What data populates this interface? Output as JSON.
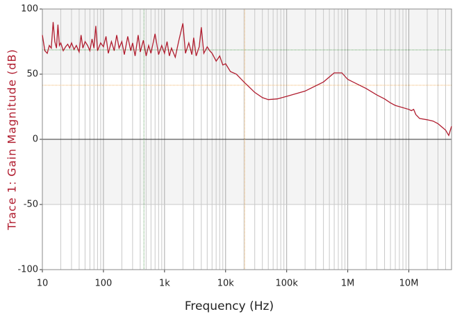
{
  "chart_data": {
    "type": "line",
    "x_label": "Frequency (Hz)",
    "y_label": "Trace 1: Gain Magnitude (dB)",
    "xscale": "log",
    "xlim": [
      10,
      50000000
    ],
    "ylim": [
      -100,
      100
    ],
    "xticks": [
      {
        "value": 10,
        "label": "10"
      },
      {
        "value": 100,
        "label": "100"
      },
      {
        "value": 1000,
        "label": "1k"
      },
      {
        "value": 10000,
        "label": "10k"
      },
      {
        "value": 100000,
        "label": "100k"
      },
      {
        "value": 1000000,
        "label": "1M"
      },
      {
        "value": 10000000,
        "label": "10M"
      }
    ],
    "minor_xticks": [
      20,
      30,
      40,
      50,
      60,
      70,
      80,
      90,
      200,
      300,
      400,
      500,
      600,
      700,
      800,
      900,
      2000,
      3000,
      4000,
      5000,
      6000,
      7000,
      8000,
      9000,
      20000,
      30000,
      40000,
      50000,
      60000,
      70000,
      80000,
      90000,
      200000,
      300000,
      400000,
      500000,
      600000,
      700000,
      800000,
      900000,
      2000000,
      3000000,
      4000000,
      5000000,
      6000000,
      7000000,
      8000000,
      9000000,
      20000000,
      30000000,
      40000000
    ],
    "yticks": [
      -100,
      -50,
      0,
      50,
      100
    ],
    "grid": true,
    "reference_lines": [
      {
        "axis": "y",
        "value": 68.6,
        "color": "#5aa05a"
      },
      {
        "axis": "y",
        "value": 41.5,
        "color": "#f0b060"
      },
      {
        "axis": "x",
        "value": 460,
        "color": "#5aa05a"
      },
      {
        "axis": "x",
        "value": 20500,
        "color": "#f0b060"
      }
    ],
    "series": [
      {
        "name": "Trace 1",
        "color": "#b01c2e",
        "x": [
          10,
          11,
          12,
          13,
          14,
          15,
          16,
          17,
          18,
          19,
          20,
          22,
          24,
          26,
          28,
          30,
          33,
          36,
          40,
          43,
          46,
          50,
          55,
          60,
          65,
          70,
          75,
          80,
          90,
          100,
          110,
          120,
          135,
          150,
          165,
          180,
          200,
          220,
          250,
          280,
          300,
          330,
          370,
          400,
          450,
          500,
          550,
          600,
          700,
          800,
          900,
          1000,
          1100,
          1200,
          1300,
          1500,
          1700,
          2000,
          2200,
          2500,
          2800,
          3000,
          3300,
          3700,
          4000,
          4400,
          5000,
          5500,
          6000,
          7000,
          8000,
          9000,
          10000,
          12000,
          15000,
          20000,
          30000,
          40000,
          50000,
          70000,
          100000,
          200000,
          400000,
          600000,
          800000,
          1000000,
          2000000,
          3000000,
          4000000,
          5000000,
          6000000,
          10000000,
          11000000,
          12000000,
          13000000,
          15000000,
          20000000,
          25000000,
          30000000,
          40000000,
          45000000,
          50000000
        ],
        "values": [
          80,
          68,
          66,
          72,
          70,
          90,
          75,
          70,
          88,
          72,
          74,
          68,
          71,
          73,
          70,
          74,
          69,
          72,
          67,
          80,
          70,
          75,
          72,
          68,
          77,
          70,
          87,
          68,
          74,
          71,
          79,
          66,
          75,
          68,
          80,
          70,
          75,
          65,
          79,
          68,
          74,
          64,
          80,
          67,
          76,
          64,
          72,
          66,
          81,
          65,
          72,
          66,
          75,
          64,
          70,
          63,
          75,
          89,
          66,
          74,
          65,
          78,
          64,
          71,
          86,
          66,
          71,
          68,
          66,
          60,
          64,
          57,
          58,
          52,
          50,
          44,
          36,
          32,
          30.5,
          31,
          33,
          37,
          44,
          51,
          51,
          46,
          39,
          34,
          31,
          28,
          26,
          23,
          22,
          23,
          19,
          16,
          15,
          14,
          12,
          7,
          3,
          10
        ]
      }
    ]
  }
}
